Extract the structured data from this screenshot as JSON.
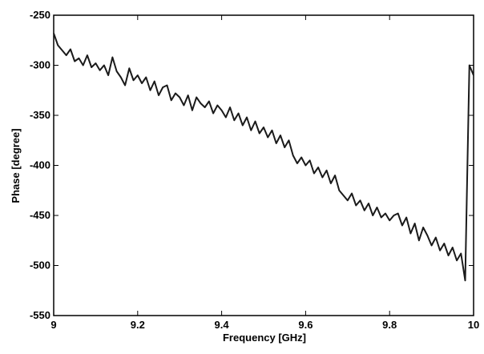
{
  "chart_data": {
    "type": "line",
    "xlabel": "Frequency [GHz]",
    "ylabel": "Phase [degree]",
    "x": [
      9.0,
      9.01,
      9.02,
      9.03,
      9.04,
      9.05,
      9.06,
      9.07,
      9.08,
      9.09,
      9.1,
      9.11,
      9.12,
      9.13,
      9.14,
      9.15,
      9.16,
      9.17,
      9.18,
      9.19,
      9.2,
      9.21,
      9.22,
      9.23,
      9.24,
      9.25,
      9.26,
      9.27,
      9.28,
      9.29,
      9.3,
      9.31,
      9.32,
      9.33,
      9.34,
      9.35,
      9.36,
      9.37,
      9.38,
      9.39,
      9.4,
      9.41,
      9.42,
      9.43,
      9.44,
      9.45,
      9.46,
      9.47,
      9.48,
      9.49,
      9.5,
      9.51,
      9.52,
      9.53,
      9.54,
      9.55,
      9.56,
      9.57,
      9.58,
      9.59,
      9.6,
      9.61,
      9.62,
      9.63,
      9.64,
      9.65,
      9.66,
      9.67,
      9.68,
      9.69,
      9.7,
      9.71,
      9.72,
      9.73,
      9.74,
      9.75,
      9.76,
      9.77,
      9.78,
      9.79,
      9.8,
      9.81,
      9.82,
      9.83,
      9.84,
      9.85,
      9.86,
      9.87,
      9.88,
      9.89,
      9.9,
      9.91,
      9.92,
      9.93,
      9.94,
      9.95,
      9.96,
      9.97,
      9.98,
      9.99,
      10.0
    ],
    "values": [
      -268,
      -280,
      -285,
      -290,
      -284,
      -296,
      -293,
      -300,
      -290,
      -302,
      -298,
      -305,
      -300,
      -310,
      -292,
      -306,
      -312,
      -320,
      -303,
      -315,
      -310,
      -318,
      -312,
      -325,
      -316,
      -330,
      -322,
      -320,
      -335,
      -328,
      -332,
      -340,
      -330,
      -345,
      -332,
      -338,
      -342,
      -336,
      -348,
      -340,
      -345,
      -352,
      -342,
      -355,
      -348,
      -360,
      -352,
      -365,
      -356,
      -368,
      -362,
      -372,
      -365,
      -378,
      -370,
      -382,
      -375,
      -390,
      -398,
      -392,
      -400,
      -395,
      -408,
      -402,
      -412,
      -405,
      -418,
      -410,
      -425,
      -430,
      -435,
      -428,
      -440,
      -435,
      -445,
      -438,
      -450,
      -442,
      -452,
      -448,
      -455,
      -450,
      -448,
      -460,
      -452,
      -468,
      -458,
      -475,
      -462,
      -470,
      -480,
      -472,
      -485,
      -478,
      -490,
      -482,
      -495,
      -488,
      -515,
      -300,
      -310
    ],
    "color": "#1a1a1a",
    "xlim": [
      9,
      10
    ],
    "xticks": [
      9,
      9.2,
      9.4,
      9.6,
      9.8,
      10
    ],
    "ylim": [
      -550,
      -250
    ],
    "yticks": [
      -550,
      -500,
      -450,
      -400,
      -350,
      -300,
      -250
    ]
  }
}
